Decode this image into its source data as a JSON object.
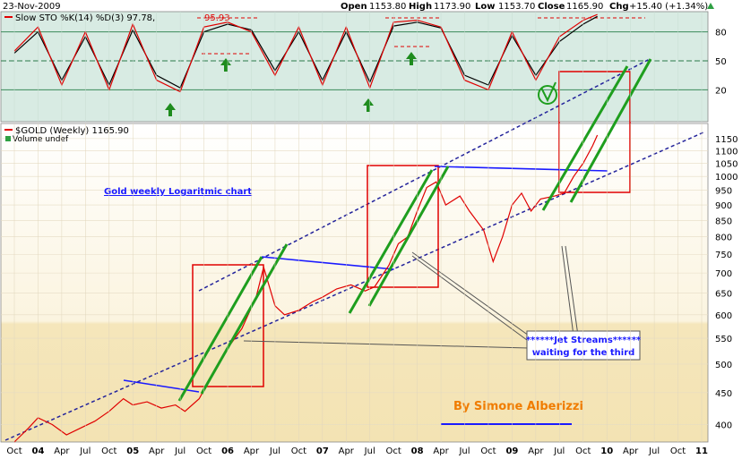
{
  "header": {
    "date": "23-Nov-2009",
    "open_label": "Open",
    "open": "1153.80",
    "high_label": "High",
    "high": "1173.90",
    "low_label": "Low",
    "low": "1153.70",
    "close_label": "Close",
    "close": "1165.90",
    "chg_label": "Chg",
    "chg": "+15.40 (+1.34%)",
    "chg_icon": "triangle-up-icon",
    "chg_color": "#2ea043"
  },
  "sto_panel": {
    "legend": "Slow STO %K(14) %D(3) 97.78,",
    "legend_value2": "95.93",
    "y_ticks": [
      20,
      50,
      80
    ]
  },
  "price_panel": {
    "legend": "$GOLD (Weekly) 1165.90",
    "volume_label": "Volume undef",
    "y_ticks": [
      400,
      450,
      500,
      550,
      600,
      650,
      700,
      750,
      800,
      850,
      900,
      950,
      1000,
      1050,
      1100,
      1150
    ],
    "x_ticks": [
      "Oct",
      "04",
      "Apr",
      "Jul",
      "Oct",
      "05",
      "Apr",
      "Jul",
      "Oct",
      "06",
      "Apr",
      "Jul",
      "Oct",
      "07",
      "Apr",
      "Jul",
      "Oct",
      "08",
      "Apr",
      "Jul",
      "Oct",
      "09",
      "Apr",
      "Jul",
      "Oct",
      "10",
      "Apr",
      "Jul",
      "Oct",
      "11"
    ]
  },
  "annotations": {
    "title": "Gold weekly Logaritmic chart",
    "jet_line1": "******Jet Streams******",
    "jet_line2": "waiting for the third",
    "author": "By Simone Alberizzi"
  },
  "colors": {
    "price_line": "#e00000",
    "sto_k": "#e00000",
    "sto_d": "#000000",
    "trend_green": "#1e9e1e",
    "channel_dash": "#23239b",
    "resistance_blue": "#1a1aff",
    "box_red": "#e00000",
    "arrow_green": "#1e8c1e",
    "author_orange": "#f07c00",
    "sto_bg": "#d8ebe3",
    "price_bg_top": "#ffffff",
    "price_bg_bottom": "#f5e6bb"
  },
  "chart_data": [
    {
      "type": "line",
      "title": "Slow STO %K(14) %D(3)",
      "ylim": [
        0,
        100
      ],
      "reference_lines": [
        20,
        50,
        80
      ],
      "series": [
        {
          "name": "%K",
          "x": [
            "2003.75",
            "2004.0",
            "2004.25",
            "2004.5",
            "2004.75",
            "2005.0",
            "2005.25",
            "2005.5",
            "2005.75",
            "2006.0",
            "2006.25",
            "2006.5",
            "2006.75",
            "2007.0",
            "2007.25",
            "2007.5",
            "2007.75",
            "2008.0",
            "2008.25",
            "2008.5",
            "2008.75",
            "2009.0",
            "2009.25",
            "2009.5",
            "2009.75",
            "2009.9"
          ],
          "values": [
            60,
            85,
            25,
            80,
            20,
            88,
            30,
            18,
            85,
            90,
            80,
            35,
            85,
            25,
            85,
            22,
            90,
            92,
            85,
            30,
            20,
            80,
            30,
            75,
            92,
            98
          ]
        },
        {
          "name": "%D",
          "x": [
            "2003.75",
            "2004.0",
            "2004.25",
            "2004.5",
            "2004.75",
            "2005.0",
            "2005.25",
            "2005.5",
            "2005.75",
            "2006.0",
            "2006.25",
            "2006.5",
            "2006.75",
            "2007.0",
            "2007.25",
            "2007.5",
            "2007.75",
            "2008.0",
            "2008.25",
            "2008.5",
            "2008.75",
            "2009.0",
            "2009.25",
            "2009.5",
            "2009.75",
            "2009.9"
          ],
          "values": [
            58,
            80,
            30,
            75,
            25,
            82,
            35,
            22,
            80,
            88,
            82,
            40,
            80,
            30,
            80,
            28,
            86,
            90,
            84,
            35,
            25,
            76,
            35,
            70,
            88,
            96
          ]
        }
      ]
    },
    {
      "type": "line",
      "title": "$GOLD (Weekly)",
      "scale": "log",
      "ylim": [
        380,
        1200
      ],
      "series": [
        {
          "name": "$GOLD",
          "x": [
            "2003.75",
            "2003.9",
            "2004.0",
            "2004.15",
            "2004.3",
            "2004.45",
            "2004.6",
            "2004.75",
            "2004.9",
            "2005.0",
            "2005.15",
            "2005.3",
            "2005.45",
            "2005.55",
            "2005.7",
            "2005.8",
            "2005.9",
            "2006.0",
            "2006.15",
            "2006.3",
            "2006.38",
            "2006.5",
            "2006.6",
            "2006.75",
            "2006.9",
            "2007.0",
            "2007.15",
            "2007.3",
            "2007.45",
            "2007.55",
            "2007.7",
            "2007.8",
            "2007.9",
            "2008.0",
            "2008.1",
            "2008.2",
            "2008.3",
            "2008.45",
            "2008.55",
            "2008.7",
            "2008.8",
            "2008.9",
            "2009.0",
            "2009.1",
            "2009.2",
            "2009.3",
            "2009.45",
            "2009.55",
            "2009.65",
            "2009.75",
            "2009.85",
            "2009.9"
          ],
          "values": [
            375,
            395,
            410,
            400,
            385,
            395,
            405,
            420,
            440,
            430,
            435,
            425,
            430,
            420,
            440,
            470,
            500,
            530,
            570,
            640,
            715,
            620,
            600,
            610,
            630,
            640,
            660,
            670,
            655,
            665,
            720,
            780,
            800,
            880,
            960,
            980,
            900,
            930,
            880,
            820,
            730,
            800,
            900,
            940,
            880,
            920,
            930,
            940,
            1000,
            1050,
            1120,
            1165
          ]
        }
      ]
    }
  ]
}
